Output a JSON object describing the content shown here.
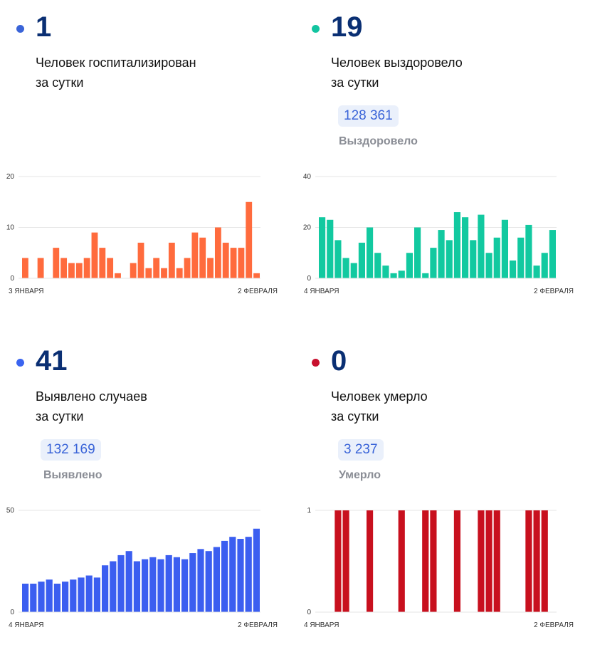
{
  "panels": [
    {
      "id": "hospitalized",
      "number": "1",
      "label_line1": "Человек госпитализирован",
      "label_line2": "за сутки",
      "total": "",
      "total_caption": "",
      "dot_color": "#3a64d8",
      "bar_color": "#ff6b3d"
    },
    {
      "id": "recovered",
      "number": "19",
      "label_line1": "Человек выздоровело",
      "label_line2": "за сутки",
      "total": "128 361",
      "total_caption": "Выздоровело",
      "dot_color": "#12c4a0",
      "bar_color": "#12c9a0"
    },
    {
      "id": "cases",
      "number": "41",
      "label_line1": "Выявлено случаев",
      "label_line2": "за сутки",
      "total": "132 169",
      "total_caption": "Выявлено",
      "dot_color": "#3a64f0",
      "bar_color": "#3b5ef0"
    },
    {
      "id": "deaths",
      "number": "0",
      "label_line1": "Человек умерло",
      "label_line2": "за сутки",
      "total": "3 237",
      "total_caption": "Умерло",
      "dot_color": "#c8102e",
      "bar_color": "#c8101e"
    }
  ],
  "chart_data": [
    {
      "type": "bar",
      "x_start_label": "3 ЯНВАРЯ",
      "x_end_label": "2 ФЕВРАЛЯ",
      "ylim": [
        0,
        20
      ],
      "yticks": [
        "0",
        "10",
        "20"
      ],
      "grid": true,
      "values": [
        4,
        0,
        4,
        0,
        6,
        4,
        3,
        3,
        4,
        9,
        6,
        4,
        1,
        0,
        3,
        7,
        2,
        4,
        2,
        7,
        2,
        4,
        9,
        8,
        4,
        10,
        7,
        6,
        6,
        15,
        1
      ]
    },
    {
      "type": "bar",
      "x_start_label": "4 ЯНВАРЯ",
      "x_end_label": "2 ФЕВРАЛЯ",
      "ylim": [
        0,
        40
      ],
      "yticks": [
        "0",
        "20",
        "40"
      ],
      "grid": true,
      "values": [
        24,
        23,
        15,
        8,
        6,
        14,
        20,
        10,
        5,
        2,
        3,
        10,
        20,
        2,
        12,
        19,
        15,
        26,
        24,
        15,
        25,
        10,
        16,
        23,
        7,
        16,
        21,
        5,
        10,
        19
      ]
    },
    {
      "type": "bar",
      "x_start_label": "4 ЯНВАРЯ",
      "x_end_label": "2 ФЕВРАЛЯ",
      "ylim": [
        0,
        50
      ],
      "yticks": [
        "0",
        "50"
      ],
      "grid": true,
      "values": [
        14,
        14,
        15,
        16,
        14,
        15,
        16,
        17,
        18,
        17,
        23,
        25,
        28,
        30,
        25,
        26,
        27,
        26,
        28,
        27,
        26,
        29,
        31,
        30,
        32,
        35,
        37,
        36,
        37,
        41
      ]
    },
    {
      "type": "bar",
      "x_start_label": "4 ЯНВАРЯ",
      "x_end_label": "2 ФЕВРАЛЯ",
      "ylim": [
        0,
        1
      ],
      "yticks": [
        "0",
        "1"
      ],
      "grid": true,
      "values": [
        0,
        0,
        1,
        1,
        0,
        0,
        1,
        0,
        0,
        0,
        1,
        0,
        0,
        1,
        1,
        0,
        0,
        1,
        0,
        0,
        1,
        1,
        1,
        0,
        0,
        0,
        1,
        1,
        1,
        0
      ]
    }
  ]
}
